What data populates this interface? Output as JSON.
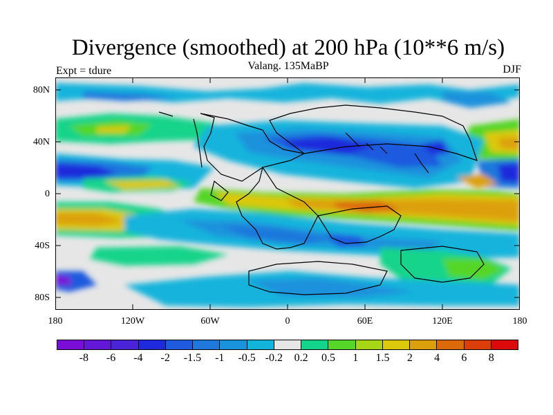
{
  "title": "Divergence (smoothed) at 200 hPa (10**6 m/s)",
  "subtitle": "Valang. 135MaBP",
  "left_label": "Expt = tdure",
  "right_label": "DJF",
  "lat_labels": [
    "80N",
    "40N",
    "0",
    "40S",
    "80S"
  ],
  "lon_labels": [
    "180",
    "120W",
    "60W",
    "0",
    "60E",
    "120E",
    "180"
  ],
  "colorbar": {
    "colors": [
      "#7a0ed8",
      "#6218d6",
      "#4a22d8",
      "#1e2adc",
      "#1f5adf",
      "#1f78dc",
      "#1a92dc",
      "#12b4dc",
      "#e6e6e6",
      "#12d48a",
      "#55d628",
      "#a6d615",
      "#dcc80c",
      "#dca00c",
      "#dc6a0a",
      "#dc3e0a",
      "#dc0a0a"
    ],
    "labels": [
      "-8",
      "-6",
      "-4",
      "-2",
      "-1.5",
      "-1",
      "-0.5",
      "-0.2",
      "0.2",
      "0.5",
      "1",
      "1.5",
      "2",
      "4",
      "6",
      "8"
    ]
  },
  "background_color": "#e6e6e6"
}
